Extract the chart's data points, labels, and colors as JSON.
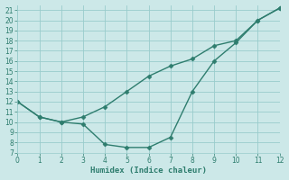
{
  "xlabel": "Humidex (Indice chaleur)",
  "bg_color": "#cce8e8",
  "grid_color": "#99cccc",
  "line_color": "#2e7d6e",
  "x_smooth": [
    0,
    1,
    2,
    3,
    4,
    5,
    6,
    7,
    8,
    9,
    10,
    11,
    12
  ],
  "y_smooth": [
    12,
    10.5,
    10,
    10.5,
    11.5,
    13,
    14.5,
    15.5,
    16.2,
    17.5,
    18,
    20,
    21.2
  ],
  "x_vshape": [
    0,
    1,
    2,
    3,
    4,
    5,
    6,
    7,
    8,
    9,
    10,
    11,
    12
  ],
  "y_vshape": [
    12,
    10.5,
    10,
    9.8,
    7.8,
    7.5,
    7.5,
    8.5,
    13,
    16,
    17.8,
    20,
    21.2
  ],
  "xlim": [
    0,
    12
  ],
  "ylim": [
    7,
    21.5
  ],
  "yticks": [
    7,
    8,
    9,
    10,
    11,
    12,
    13,
    14,
    15,
    16,
    17,
    18,
    19,
    20,
    21
  ],
  "xticks": [
    0,
    1,
    2,
    3,
    4,
    5,
    6,
    7,
    8,
    9,
    10,
    11,
    12
  ]
}
